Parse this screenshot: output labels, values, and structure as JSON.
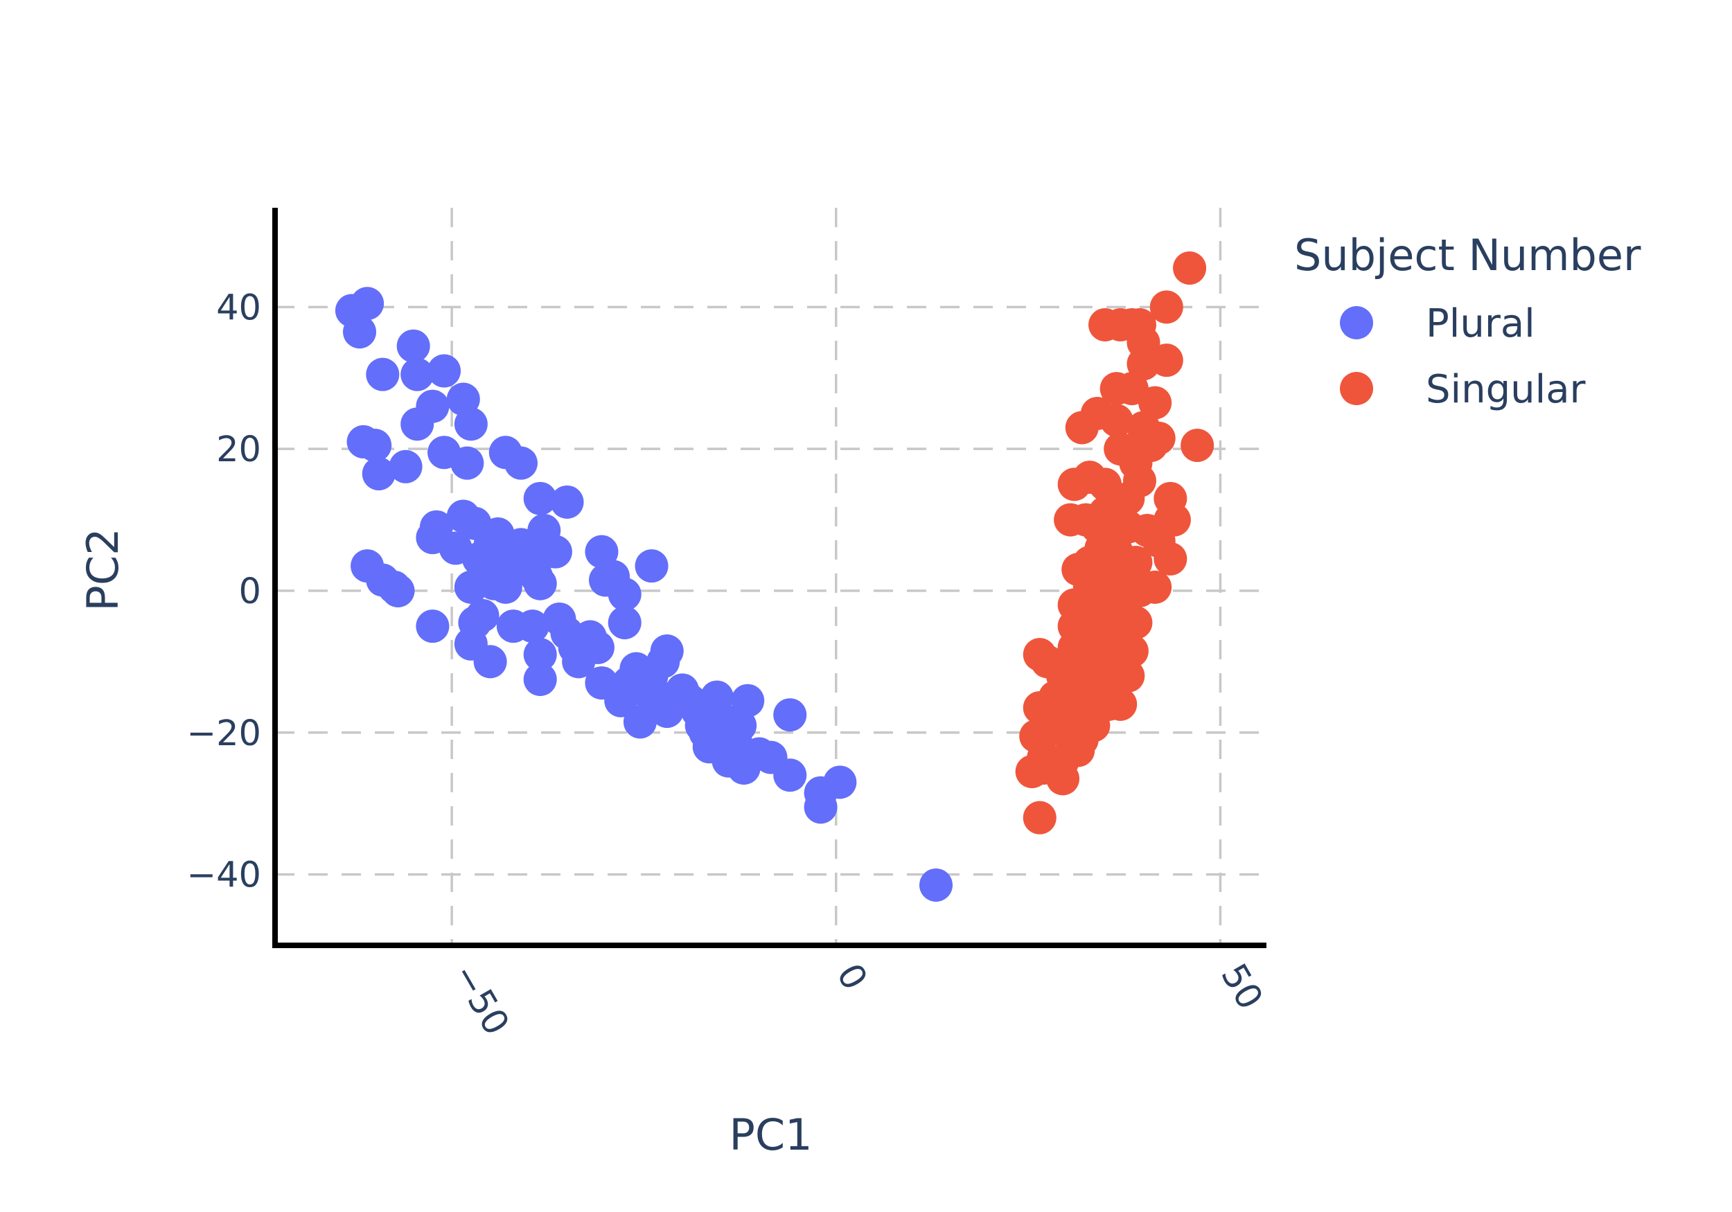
{
  "chart_data": {
    "type": "scatter",
    "title": "",
    "xlabel": "PC1",
    "ylabel": "PC2",
    "xlim": [
      -73,
      56
    ],
    "ylim": [
      -50,
      54
    ],
    "xticks": [
      -50,
      0,
      50
    ],
    "yticks": [
      -40,
      -20,
      0,
      20,
      40
    ],
    "xtick_labels": [
      "−50",
      "0",
      "50"
    ],
    "ytick_labels": [
      "−40",
      "−20",
      "0",
      "20",
      "40"
    ],
    "grid": true,
    "legend": {
      "title": "Subject Number",
      "position": "right"
    },
    "series": [
      {
        "name": "Plural",
        "color": "#636efa",
        "points": [
          [
            -63,
            39.5
          ],
          [
            -61,
            40.5
          ],
          [
            -62,
            36.5
          ],
          [
            -59,
            30.5
          ],
          [
            -55,
            34.5
          ],
          [
            -54.5,
            30.5
          ],
          [
            -51,
            31
          ],
          [
            -52.5,
            26
          ],
          [
            -48.5,
            27
          ],
          [
            -47.5,
            23.5
          ],
          [
            -54.5,
            23.5
          ],
          [
            -61.5,
            21
          ],
          [
            -60,
            20.5
          ],
          [
            -59.5,
            16.5
          ],
          [
            -56,
            17.5
          ],
          [
            -51,
            19.5
          ],
          [
            -48,
            18
          ],
          [
            -43,
            19.5
          ],
          [
            -41,
            18
          ],
          [
            -38.5,
            13
          ],
          [
            -35,
            12.5
          ],
          [
            -52.5,
            7.5
          ],
          [
            -52,
            9
          ],
          [
            -48.5,
            10.5
          ],
          [
            -47,
            9.5
          ],
          [
            -49.5,
            6
          ],
          [
            -46.5,
            4.5
          ],
          [
            -45,
            6.5
          ],
          [
            -44.5,
            3.5
          ],
          [
            -44,
            8
          ],
          [
            -42.5,
            5
          ],
          [
            -41,
            6.5
          ],
          [
            -40,
            3
          ],
          [
            -39.5,
            4.5
          ],
          [
            -38,
            8.5
          ],
          [
            -37.5,
            5.5
          ],
          [
            -36.5,
            5.5
          ],
          [
            -47.5,
            0.5
          ],
          [
            -46,
            2
          ],
          [
            -44.5,
            1
          ],
          [
            -43,
            0.5
          ],
          [
            -39,
            2
          ],
          [
            -38.5,
            1
          ],
          [
            -61,
            3.5
          ],
          [
            -59,
            1.5
          ],
          [
            -57.5,
            0.5
          ],
          [
            -57,
            0
          ],
          [
            -52.5,
            -5
          ],
          [
            -47,
            -4.5
          ],
          [
            -46,
            -3.5
          ],
          [
            -47.5,
            -7.5
          ],
          [
            -45,
            -10
          ],
          [
            -42,
            -5
          ],
          [
            -39.5,
            -5
          ],
          [
            -38.5,
            -9
          ],
          [
            -38.5,
            -12.5
          ],
          [
            -36,
            -4
          ],
          [
            -35,
            -6
          ],
          [
            -34,
            -8
          ],
          [
            -33.5,
            -10
          ],
          [
            -32,
            -6.5
          ],
          [
            -31,
            -8
          ],
          [
            -30.5,
            -13
          ],
          [
            -30.5,
            5.5
          ],
          [
            -30,
            1.5
          ],
          [
            -29,
            2
          ],
          [
            -27.5,
            -0.5
          ],
          [
            -27.5,
            -4.5
          ],
          [
            -24,
            3.5
          ],
          [
            -28,
            -15.5
          ],
          [
            -27,
            -13
          ],
          [
            -26,
            -11
          ],
          [
            -25,
            -14
          ],
          [
            -24,
            -12
          ],
          [
            -23.5,
            -16
          ],
          [
            -22,
            -17
          ],
          [
            -21,
            -15
          ],
          [
            -22.5,
            -10
          ],
          [
            -22,
            -8.5
          ],
          [
            -25.5,
            -18.5
          ],
          [
            -20,
            -14
          ],
          [
            -19,
            -15.5
          ],
          [
            -18,
            -17
          ],
          [
            -17.5,
            -19
          ],
          [
            -16.5,
            -22
          ],
          [
            -15,
            -18
          ],
          [
            -14.5,
            -20
          ],
          [
            -14,
            -24
          ],
          [
            -13,
            -21.5
          ],
          [
            -12.5,
            -19
          ],
          [
            -12,
            -25
          ],
          [
            -11.5,
            -15.5
          ],
          [
            -10,
            -23
          ],
          [
            -8.5,
            -23.5
          ],
          [
            -6,
            -26
          ],
          [
            -6,
            -17.5
          ],
          [
            -2,
            -28.5
          ],
          [
            -2,
            -30.5
          ],
          [
            0.5,
            -27
          ],
          [
            13,
            -41.5
          ],
          [
            -15.5,
            -15
          ],
          [
            -17,
            -20
          ]
        ]
      },
      {
        "name": "Singular",
        "color": "#ef553b",
        "points": [
          [
            46,
            45.5
          ],
          [
            43,
            40
          ],
          [
            35,
            37.5
          ],
          [
            37,
            37.5
          ],
          [
            38.5,
            37.5
          ],
          [
            39.5,
            37.5
          ],
          [
            40,
            35
          ],
          [
            43,
            32.5
          ],
          [
            40,
            32
          ],
          [
            36.5,
            28.5
          ],
          [
            38.5,
            28.5
          ],
          [
            41.5,
            26.5
          ],
          [
            34,
            25
          ],
          [
            36.5,
            24
          ],
          [
            32,
            23
          ],
          [
            40,
            23
          ],
          [
            42,
            21.5
          ],
          [
            41,
            20.5
          ],
          [
            47,
            20.5
          ],
          [
            37,
            20
          ],
          [
            39,
            18
          ],
          [
            31,
            15
          ],
          [
            33,
            16
          ],
          [
            35,
            15
          ],
          [
            36,
            13
          ],
          [
            39.5,
            15.5
          ],
          [
            38,
            13
          ],
          [
            43.5,
            13
          ],
          [
            30.5,
            10
          ],
          [
            32.5,
            10
          ],
          [
            34,
            9
          ],
          [
            36,
            8
          ],
          [
            38,
            9
          ],
          [
            40.5,
            8.5
          ],
          [
            43.5,
            10
          ],
          [
            44,
            10
          ],
          [
            42,
            7
          ],
          [
            34.5,
            6
          ],
          [
            36.5,
            5.5
          ],
          [
            33,
            4
          ],
          [
            35,
            2
          ],
          [
            37,
            3
          ],
          [
            39,
            4
          ],
          [
            43.5,
            4.5
          ],
          [
            31.5,
            3
          ],
          [
            33,
            0.5
          ],
          [
            36,
            -1
          ],
          [
            39.5,
            0
          ],
          [
            41.5,
            0.5
          ],
          [
            31,
            -2
          ],
          [
            32.5,
            -3
          ],
          [
            34.5,
            -4
          ],
          [
            36.5,
            -5
          ],
          [
            39,
            -4.5
          ],
          [
            31,
            -5
          ],
          [
            33,
            -6
          ],
          [
            35.5,
            -7.5
          ],
          [
            37.5,
            -7.5
          ],
          [
            38.5,
            -8.5
          ],
          [
            26.5,
            -9
          ],
          [
            27.5,
            -10
          ],
          [
            31,
            -8
          ],
          [
            34,
            -9.5
          ],
          [
            29.5,
            -12
          ],
          [
            32,
            -13
          ],
          [
            36,
            -12
          ],
          [
            38,
            -12
          ],
          [
            26.5,
            -16.5
          ],
          [
            28.5,
            -15
          ],
          [
            30.5,
            -16
          ],
          [
            33,
            -17
          ],
          [
            35.5,
            -16
          ],
          [
            37,
            -16
          ],
          [
            26,
            -20.5
          ],
          [
            28.5,
            -19.5
          ],
          [
            30.5,
            -20
          ],
          [
            32,
            -21
          ],
          [
            33.5,
            -19
          ],
          [
            27,
            -23.5
          ],
          [
            29.5,
            -24
          ],
          [
            25.5,
            -25.5
          ],
          [
            27,
            -25
          ],
          [
            29.5,
            -26.5
          ],
          [
            26.5,
            -32
          ],
          [
            35,
            11
          ],
          [
            34,
            2
          ],
          [
            37.5,
            -2
          ],
          [
            30.5,
            -11
          ],
          [
            33,
            -14
          ],
          [
            29,
            -17.5
          ],
          [
            31.5,
            -22.5
          ],
          [
            36,
            -9
          ],
          [
            32,
            -5
          ],
          [
            34.5,
            5
          ],
          [
            37,
            10
          ]
        ]
      }
    ]
  }
}
